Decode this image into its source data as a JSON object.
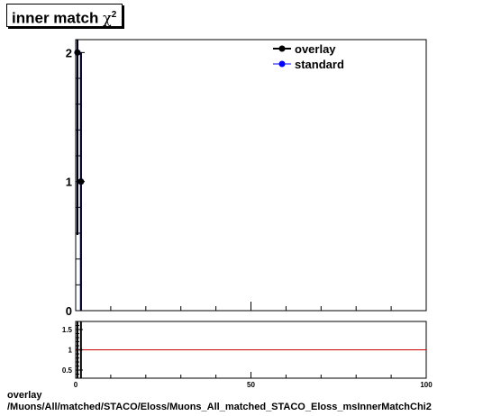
{
  "title": {
    "main": "inner match",
    "symbol": "χ",
    "superscript": "2"
  },
  "legend": [
    {
      "label": "overlay",
      "color": "#000000"
    },
    {
      "label": "standard",
      "color": "#0000ff"
    }
  ],
  "footer": {
    "line1": "overlay",
    "line2": "/Muons/All/matched/STACO/Eloss/Muons_All_matched_STACO_Eloss_msInnerMatchChi2"
  },
  "chart_data": [
    {
      "type": "line",
      "panel": "main",
      "title": "inner match χ2",
      "xlim": [
        0,
        100
      ],
      "ylim": [
        0,
        2.1
      ],
      "yticks": [
        0,
        1,
        2
      ],
      "series": [
        {
          "name": "overlay",
          "color": "#000000",
          "points": [
            {
              "x": 0.5,
              "y": 2
            },
            {
              "x": 1.5,
              "y": 1
            }
          ]
        },
        {
          "name": "standard",
          "color": "#0000ff",
          "points": [
            {
              "x": 0.5,
              "y": 2
            },
            {
              "x": 1.5,
              "y": 1
            }
          ]
        }
      ],
      "grid": false,
      "legend_position": "top-right"
    },
    {
      "type": "line",
      "panel": "ratio",
      "xlim": [
        0,
        100
      ],
      "ylim": [
        0.3,
        1.7
      ],
      "xticks": [
        0,
        50,
        100
      ],
      "yticks": [
        0.5,
        1,
        1.5
      ],
      "reference_line": {
        "y": 1,
        "color": "#cc0000"
      },
      "grid": false
    }
  ]
}
